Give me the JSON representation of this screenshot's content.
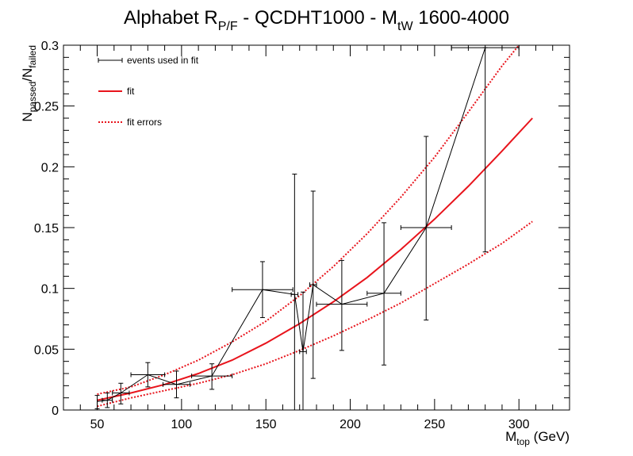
{
  "chart_data": {
    "type": "scatter",
    "title": {
      "main": "Alphabet R",
      "main_sub": "P/F",
      "mid": " - QCDHT1000 - M",
      "mid_sub": "tW",
      "tail": " 1600-4000"
    },
    "xlabel": {
      "main": "M",
      "sub": "top",
      "tail": " (GeV)"
    },
    "ylabel": {
      "main1": "N",
      "sub1": "passed",
      "sep": "/N",
      "sub2": "failed"
    },
    "xlim": [
      30,
      330
    ],
    "ylim": [
      0,
      0.3
    ],
    "x_ticks": [
      50,
      100,
      150,
      200,
      250,
      300
    ],
    "y_ticks": [
      0,
      0.05,
      0.1,
      0.15,
      0.2,
      0.25,
      0.3
    ],
    "legend_position": "top-left",
    "legend": [
      {
        "label": "events used in fit",
        "style": "errorbar"
      },
      {
        "label": "fit",
        "style": "solid"
      },
      {
        "label": "fit errors",
        "style": "dotted"
      }
    ],
    "colors": {
      "data": "#000000",
      "fit": "#e8141c",
      "axis": "#000000"
    },
    "points": [
      {
        "x": 50,
        "y": 0.007,
        "xerr": 0,
        "ylo": 0.001,
        "yhi": 0.012
      },
      {
        "x": 56,
        "y": 0.008,
        "xerr": 3,
        "ylo": 0.002,
        "yhi": 0.014
      },
      {
        "x": 64,
        "y": 0.014,
        "xerr": 5,
        "ylo": 0.005,
        "yhi": 0.022
      },
      {
        "x": 80,
        "y": 0.029,
        "xerr": 10,
        "ylo": 0.019,
        "yhi": 0.039
      },
      {
        "x": 97,
        "y": 0.021,
        "xerr": 8,
        "ylo": 0.01,
        "yhi": 0.032
      },
      {
        "x": 118,
        "y": 0.028,
        "xerr": 12,
        "ylo": 0.017,
        "yhi": 0.038
      },
      {
        "x": 148,
        "y": 0.099,
        "xerr": 18,
        "ylo": 0.076,
        "yhi": 0.122
      },
      {
        "x": 167,
        "y": 0.095,
        "xerr": 2,
        "ylo": 0.0,
        "yhi": 0.194
      },
      {
        "x": 172,
        "y": 0.048,
        "xerr": 2,
        "ylo": 0.0,
        "yhi": 0.097
      },
      {
        "x": 178,
        "y": 0.103,
        "xerr": 2,
        "ylo": 0.026,
        "yhi": 0.18
      },
      {
        "x": 195,
        "y": 0.087,
        "xerr": 15,
        "ylo": 0.049,
        "yhi": 0.123
      },
      {
        "x": 220,
        "y": 0.096,
        "xerr": 10,
        "ylo": 0.037,
        "yhi": 0.154
      },
      {
        "x": 245,
        "y": 0.15,
        "xerr": 15,
        "ylo": 0.074,
        "yhi": 0.225
      },
      {
        "x": 280,
        "y": 0.298,
        "xerr": 20,
        "ylo": 0.13,
        "yhi": 0.298
      }
    ],
    "fit_series": [
      {
        "name": "fit",
        "style": "solid",
        "x": [
          50,
          70,
          90,
          110,
          130,
          150,
          170,
          190,
          210,
          230,
          250,
          270,
          290,
          308
        ],
        "y": [
          0.008,
          0.014,
          0.021,
          0.03,
          0.041,
          0.055,
          0.071,
          0.089,
          0.109,
          0.132,
          0.157,
          0.184,
          0.213,
          0.24
        ]
      },
      {
        "name": "fit errors (upper)",
        "style": "dotted",
        "x": [
          50,
          70,
          90,
          110,
          130,
          150,
          170,
          190,
          210,
          230,
          250,
          270,
          290,
          300
        ],
        "y": [
          0.013,
          0.019,
          0.029,
          0.041,
          0.056,
          0.073,
          0.094,
          0.118,
          0.145,
          0.175,
          0.208,
          0.245,
          0.283,
          0.301
        ]
      },
      {
        "name": "fit errors (lower)",
        "style": "dotted",
        "x": [
          50,
          70,
          90,
          110,
          130,
          150,
          170,
          190,
          210,
          230,
          250,
          270,
          290,
          308
        ],
        "y": [
          0.003,
          0.01,
          0.016,
          0.022,
          0.029,
          0.038,
          0.049,
          0.061,
          0.074,
          0.088,
          0.104,
          0.12,
          0.137,
          0.155
        ]
      }
    ]
  }
}
